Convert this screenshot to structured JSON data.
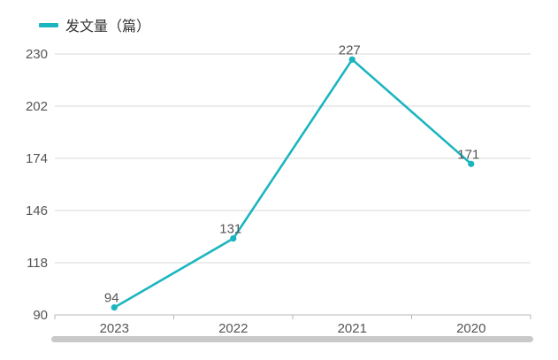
{
  "colors": {
    "series": "#1BB5C0",
    "grid": "#D9D9D9",
    "axis": "#B7B7B7",
    "text": "#555555",
    "scrollbar": "#C9C9C9"
  },
  "legend": {
    "label": "发文量（篇）"
  },
  "chart_data": {
    "type": "line",
    "categories": [
      "2023",
      "2022",
      "2021",
      "2020"
    ],
    "series": [
      {
        "name": "发文量（篇）",
        "values": [
          94,
          131,
          227,
          171
        ]
      }
    ],
    "yticks": [
      90,
      118,
      146,
      174,
      202,
      230
    ],
    "ylim": [
      90,
      230
    ],
    "grid": true,
    "legend_position": "top-left",
    "data_labels": true
  }
}
